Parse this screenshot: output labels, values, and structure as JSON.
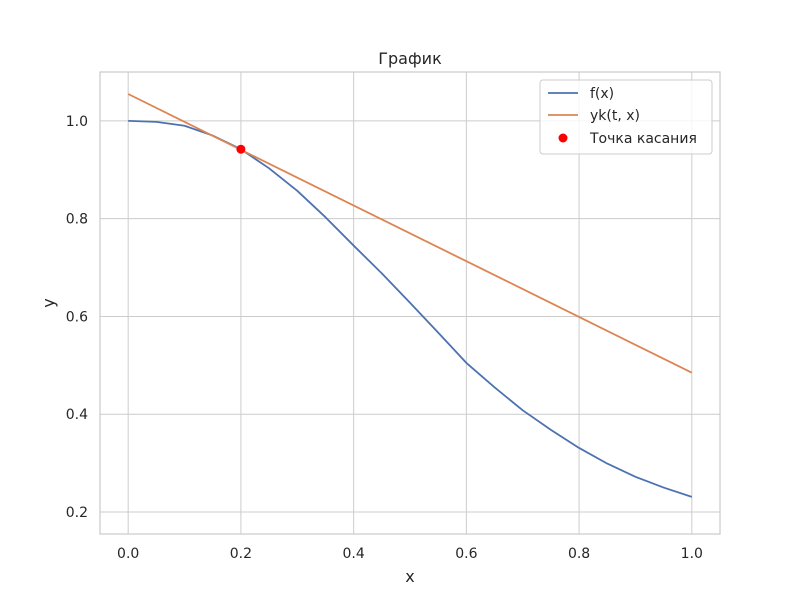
{
  "chart_data": {
    "type": "line",
    "title": "График",
    "xlabel": "x",
    "ylabel": "y",
    "xlim": [
      -0.05,
      1.05
    ],
    "ylim": [
      0.155,
      1.1
    ],
    "xticks": [
      0.0,
      0.2,
      0.4,
      0.6,
      0.8,
      1.0
    ],
    "xtick_labels": [
      "0.0",
      "0.2",
      "0.4",
      "0.6",
      "0.8",
      "1.0"
    ],
    "yticks": [
      0.2,
      0.4,
      0.6,
      0.8,
      1.0
    ],
    "ytick_labels": [
      "0.2",
      "0.4",
      "0.6",
      "0.8",
      "1.0"
    ],
    "grid": true,
    "legend_position": "top-right",
    "series": [
      {
        "name": "f(x)",
        "type": "line",
        "color": "#4c72b0",
        "x": [
          0.0,
          0.05,
          0.1,
          0.15,
          0.2,
          0.25,
          0.3,
          0.35,
          0.4,
          0.45,
          0.5,
          0.55,
          0.6,
          0.65,
          0.7,
          0.75,
          0.8,
          0.85,
          0.9,
          0.95,
          1.0
        ],
        "y": [
          1.0,
          0.998,
          0.99,
          0.97,
          0.942,
          0.903,
          0.857,
          0.803,
          0.745,
          0.688,
          0.628,
          0.567,
          0.505,
          0.455,
          0.408,
          0.368,
          0.331,
          0.299,
          0.272,
          0.25,
          0.231
        ]
      },
      {
        "name": "yk(t, x)",
        "type": "line",
        "color": "#dd8452",
        "x": [
          0.0,
          1.0
        ],
        "y": [
          1.055,
          0.485
        ]
      },
      {
        "name": "Точка касания",
        "type": "scatter",
        "color": "#ff0000",
        "x": [
          0.2
        ],
        "y": [
          0.942
        ]
      }
    ]
  }
}
